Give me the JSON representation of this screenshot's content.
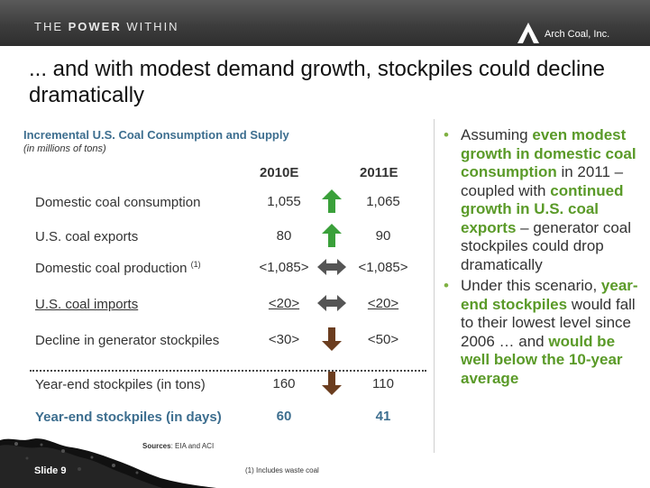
{
  "header": {
    "tagline_pre": "THE ",
    "tagline_bold": "POWER",
    "tagline_post": " WITHIN",
    "company": "Arch Coal, Inc."
  },
  "title": "... and with modest demand growth, stockpiles could decline dramatically",
  "table": {
    "title": "Incremental U.S. Coal Consumption and Supply",
    "subtitle": "(in millions of tons)",
    "col1": "2010E",
    "col2": "2011E",
    "rows": [
      {
        "label": "Domestic coal consumption",
        "sup": "",
        "v2010": "1,055",
        "v2011": "1,065",
        "arrow": "up-arrow-icon"
      },
      {
        "label": "U.S. coal exports",
        "sup": "",
        "v2010": "80",
        "v2011": "90",
        "arrow": "up-arrow-icon"
      },
      {
        "label": "Domestic coal production ",
        "sup": "(1)",
        "v2010": "<1,085>",
        "v2011": "<1,085>",
        "arrow": "double-arrow-icon"
      },
      {
        "label": "U.S. coal imports",
        "sup": "",
        "v2010": "<20>",
        "v2011": "<20>",
        "arrow": "double-arrow-icon"
      },
      {
        "label": "Decline in generator stockpiles",
        "sup": "",
        "v2010": "<30>",
        "v2011": "<50>",
        "arrow": "down-arrow-icon"
      },
      {
        "label": "Year-end stockpiles (in tons)",
        "sup": "",
        "v2010": "160",
        "v2011": "110",
        "arrow": "down-arrow-icon"
      },
      {
        "label": "Year-end stockpiles (in days)",
        "sup": "",
        "v2010": "60",
        "v2011": "41",
        "arrow": ""
      }
    ]
  },
  "bullets": [
    {
      "parts": [
        {
          "t": "Assuming ",
          "g": false
        },
        {
          "t": "even modest growth in domestic coal consumption",
          "g": true
        },
        {
          "t": " in 2011 – coupled with ",
          "g": false
        },
        {
          "t": "continued growth in U.S. coal exports",
          "g": true
        },
        {
          "t": " – generator coal stockpiles could drop dramatically",
          "g": false
        }
      ]
    },
    {
      "parts": [
        {
          "t": "Under this scenario, ",
          "g": false
        },
        {
          "t": "year-end stockpiles",
          "g": true
        },
        {
          "t": " would fall to their lowest level since 2006 … and ",
          "g": false
        },
        {
          "t": "would be well below the 10-year average",
          "g": true
        }
      ]
    }
  ],
  "footer": {
    "sources_label": "Sources",
    "sources_text": ": EIA and ACI",
    "slide": "Slide 9",
    "footnote": "(1)  Includes waste coal"
  },
  "colors": {
    "up_arrow": "#3aa03a",
    "double_arrow": "#555555",
    "down_arrow": "#6b3d1f",
    "accent_blue": "#3d6e8f",
    "accent_green": "#5a9a28"
  }
}
